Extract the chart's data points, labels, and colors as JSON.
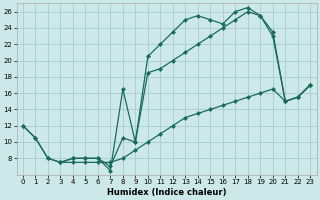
{
  "xlabel": "Humidex (Indice chaleur)",
  "bg_color": "#cce8e8",
  "grid_color": "#aacccc",
  "line_color": "#1a6b5a",
  "xlim": [
    -0.5,
    23.5
  ],
  "ylim": [
    6,
    27
  ],
  "yticks": [
    8,
    10,
    12,
    14,
    16,
    18,
    20,
    22,
    24,
    26
  ],
  "xticks": [
    0,
    1,
    2,
    3,
    4,
    5,
    6,
    7,
    8,
    9,
    10,
    11,
    12,
    13,
    14,
    15,
    16,
    17,
    18,
    19,
    20,
    21,
    22,
    23
  ],
  "line1_x": [
    0,
    1,
    2,
    3,
    4,
    5,
    6,
    7,
    8,
    9,
    10,
    11,
    12,
    13,
    14,
    15,
    16,
    17,
    18,
    19,
    20,
    21,
    22,
    23
  ],
  "line1_y": [
    12,
    10.5,
    8,
    7.5,
    7.5,
    7.5,
    7.5,
    7.5,
    8,
    9,
    10,
    11,
    12,
    13,
    13.5,
    14,
    14.5,
    15,
    15.5,
    16,
    16.5,
    15,
    15.5,
    17
  ],
  "line2_x": [
    0,
    1,
    2,
    3,
    4,
    5,
    6,
    7,
    8,
    9,
    10,
    11,
    12,
    13,
    14,
    15,
    16,
    17,
    18,
    19,
    20,
    21,
    22,
    23
  ],
  "line2_y": [
    12,
    10.5,
    8,
    7.5,
    8,
    8,
    8,
    7,
    10.5,
    10,
    18.5,
    19,
    20,
    21,
    22,
    23,
    24,
    25,
    26,
    25.5,
    23,
    15,
    15.5,
    17
  ],
  "line3_x": [
    3,
    4,
    5,
    6,
    7,
    8,
    9,
    10,
    11,
    12,
    13,
    14,
    15,
    16,
    17,
    18,
    19,
    20,
    21,
    22,
    23
  ],
  "line3_y": [
    7.5,
    8,
    8,
    8,
    6.5,
    16.5,
    10,
    20.5,
    22,
    23.5,
    25,
    25.5,
    25,
    24.5,
    26,
    26.5,
    25.5,
    23.5,
    15,
    15.5,
    17
  ]
}
